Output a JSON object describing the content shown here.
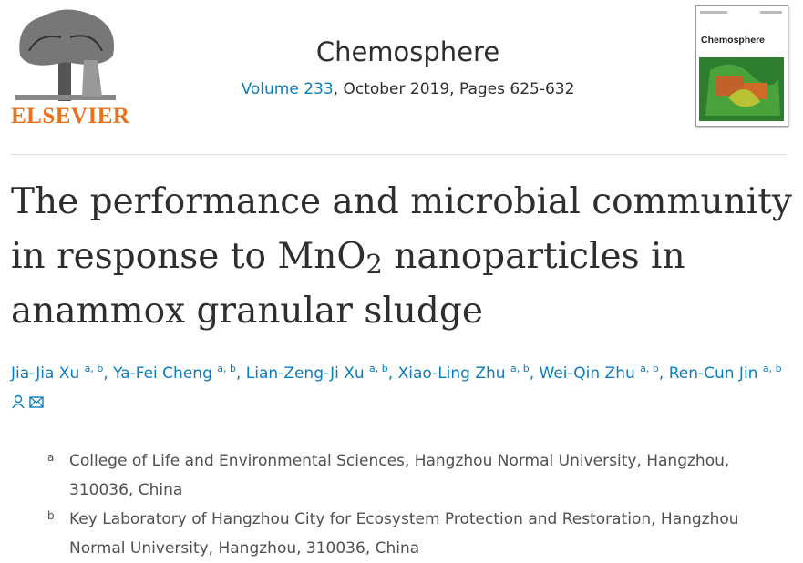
{
  "header": {
    "publisher": "ELSEVIER",
    "journal": "Chemosphere",
    "volume": "Volume 233",
    "issue_info": ", October 2019, Pages 625-632",
    "cover_title": "Chemosphere"
  },
  "article": {
    "title": {
      "main": "The performance and microbial community in response to MnO",
      "subscript": "2",
      "rest": " nanoparticles in anammox granular sludge"
    },
    "author_separator": ",",
    "authors": [
      {
        "name": "Jia-Jia Xu",
        "affiliations": "a, b"
      },
      {
        "name": "Ya-Fei Cheng",
        "affiliations": "a, b"
      },
      {
        "name": "Lian-Zeng-Ji Xu",
        "affiliations": "a, b"
      },
      {
        "name": "Xiao-Ling Zhu",
        "affiliations": "a, b"
      },
      {
        "name": "Wei-Qin Zhu",
        "affiliations": "a, b"
      },
      {
        "name": "Ren-Cun Jin",
        "affiliations": "a, b"
      }
    ],
    "affiliations": [
      {
        "label": "a",
        "text": "College of Life and Environmental Sciences, Hangzhou Normal University, Hangzhou, 310036, China"
      },
      {
        "label": "b",
        "text": "Key Laboratory of Hangzhou City for Ecosystem Protection and Restoration, Hangzhou Normal University, Hangzhou, 310036, China"
      }
    ]
  }
}
